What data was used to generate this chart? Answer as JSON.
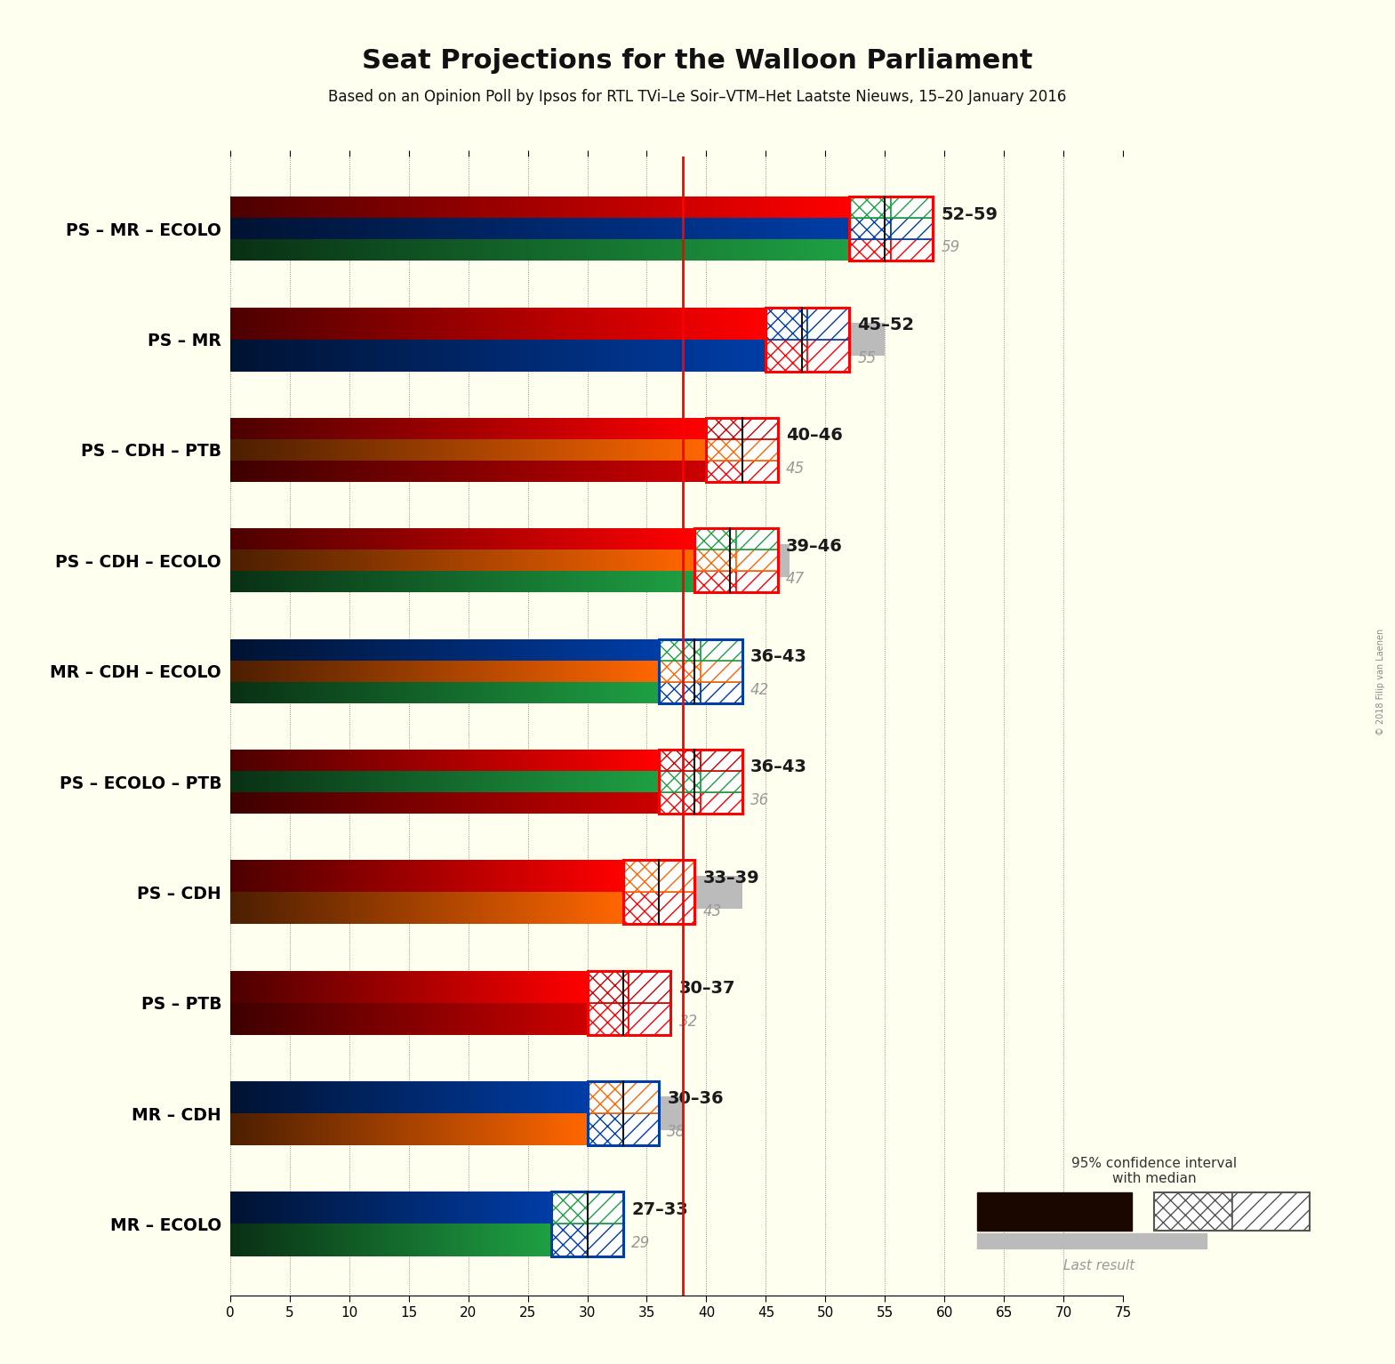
{
  "title": "Seat Projections for the Walloon Parliament",
  "subtitle": "Based on an Opinion Poll by Ipsos for RTL TVi–Le Soir–VTM–Het Laatste Nieuws, 15–20 January 2016",
  "copyright": "© 2018 Filip van Laenen",
  "background_color": "#FFFFF0",
  "majority_line": 38,
  "x_max": 75,
  "x_ticks": [
    0,
    5,
    10,
    15,
    20,
    25,
    30,
    35,
    40,
    45,
    50,
    55,
    60,
    65,
    70,
    75
  ],
  "party_colors": {
    "PS": "#FF0000",
    "MR": "#003DA6",
    "ECOLO": "#1EA043",
    "CDH": "#FF6600",
    "PTB": "#CC0000"
  },
  "coalitions": [
    {
      "name": "PS – MR – ECOLO",
      "parties": [
        "PS",
        "MR",
        "ECOLO"
      ],
      "seats_low": 52,
      "seats_high": 59,
      "median": 55,
      "last_result": 59
    },
    {
      "name": "PS – MR",
      "parties": [
        "PS",
        "MR"
      ],
      "seats_low": 45,
      "seats_high": 52,
      "median": 48,
      "last_result": 55
    },
    {
      "name": "PS – CDH – PTB",
      "parties": [
        "PS",
        "CDH",
        "PTB"
      ],
      "seats_low": 40,
      "seats_high": 46,
      "median": 43,
      "last_result": 45
    },
    {
      "name": "PS – CDH – ECOLO",
      "parties": [
        "PS",
        "CDH",
        "ECOLO"
      ],
      "seats_low": 39,
      "seats_high": 46,
      "median": 42,
      "last_result": 47
    },
    {
      "name": "MR – CDH – ECOLO",
      "parties": [
        "MR",
        "CDH",
        "ECOLO"
      ],
      "seats_low": 36,
      "seats_high": 43,
      "median": 39,
      "last_result": 42
    },
    {
      "name": "PS – ECOLO – PTB",
      "parties": [
        "PS",
        "ECOLO",
        "PTB"
      ],
      "seats_low": 36,
      "seats_high": 43,
      "median": 39,
      "last_result": 36
    },
    {
      "name": "PS – CDH",
      "parties": [
        "PS",
        "CDH"
      ],
      "seats_low": 33,
      "seats_high": 39,
      "median": 36,
      "last_result": 43
    },
    {
      "name": "PS – PTB",
      "parties": [
        "PS",
        "PTB"
      ],
      "seats_low": 30,
      "seats_high": 37,
      "median": 33,
      "last_result": 32
    },
    {
      "name": "MR – CDH",
      "parties": [
        "MR",
        "CDH"
      ],
      "seats_low": 30,
      "seats_high": 36,
      "median": 33,
      "last_result": 38
    },
    {
      "name": "MR – ECOLO",
      "parties": [
        "MR",
        "ECOLO"
      ],
      "seats_low": 27,
      "seats_high": 33,
      "median": 30,
      "last_result": 29
    }
  ]
}
